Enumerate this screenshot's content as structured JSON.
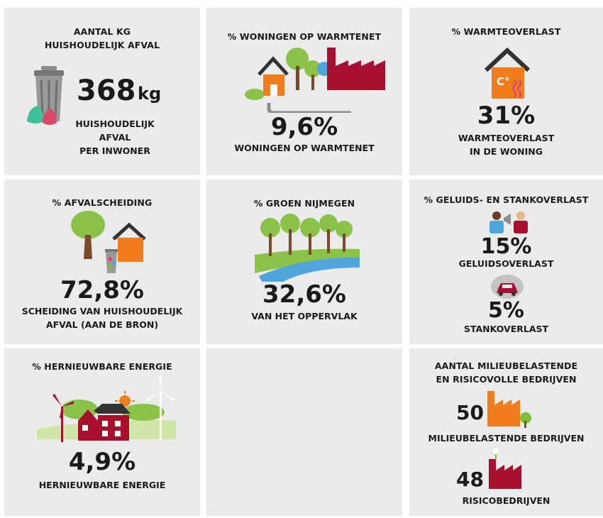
{
  "cards": {
    "afval": {
      "title_1": "AANTAL KG",
      "title_2": "HUISHOUDELIJK AFVAL",
      "value": "368",
      "unit": "kg",
      "label_1": "HUISHOUDELIJK",
      "label_2": "AFVAL",
      "label_3": "PER INWONER"
    },
    "warmtenet": {
      "title": "% WONINGEN OP WARMTENET",
      "value": "9,6%",
      "label": "WONINGEN OP WARMTENET"
    },
    "warmteoverlast": {
      "title": "% WARMTEOVERLAST",
      "icon_text": "C°",
      "value": "31%",
      "label_1": "WARMTEOVERLAST",
      "label_2": "IN DE WONING"
    },
    "afvalscheiding": {
      "title": "% AFVALSCHEIDING",
      "value": "72,8%",
      "label_1": "SCHEIDING VAN HUISHOUDELIJK",
      "label_2": "AFVAL (AAN DE BRON)"
    },
    "groen": {
      "title": "% GROEN NIJMEGEN",
      "value": "32,6%",
      "label": "VAN HET OPPERVLAK"
    },
    "overlast": {
      "title": "% GELUIDS- EN STANKOVERLAST",
      "geluid_value": "15%",
      "geluid_label": "GELUIDSOVERLAST",
      "stank_value": "5%",
      "stank_label": "STANKOVERLAST"
    },
    "energie": {
      "title": "% HERNIEUWBARE ENERGIE",
      "value": "4,9%",
      "label": "HERNIEUWBARE ENERGIE"
    },
    "bedrijven": {
      "title_1": "AANTAL MILIEUBELASTENDE",
      "title_2": "EN RISICOVOLLE BEDRIJVEN",
      "milieu_value": "50",
      "milieu_label": "MILIEUBELASTENDE BEDRIJVEN",
      "risico_value": "48",
      "risico_label": "RISICOBEDRIJVEN"
    }
  },
  "colors": {
    "card_bg": "#ebebeb",
    "orange": "#f07c1c",
    "crimson": "#a8112e",
    "green": "#7cbf3a",
    "tree": "#8bc34a",
    "trunk": "#7a4a2a",
    "water": "#4ea6dc",
    "grey": "#8c8c8c"
  }
}
